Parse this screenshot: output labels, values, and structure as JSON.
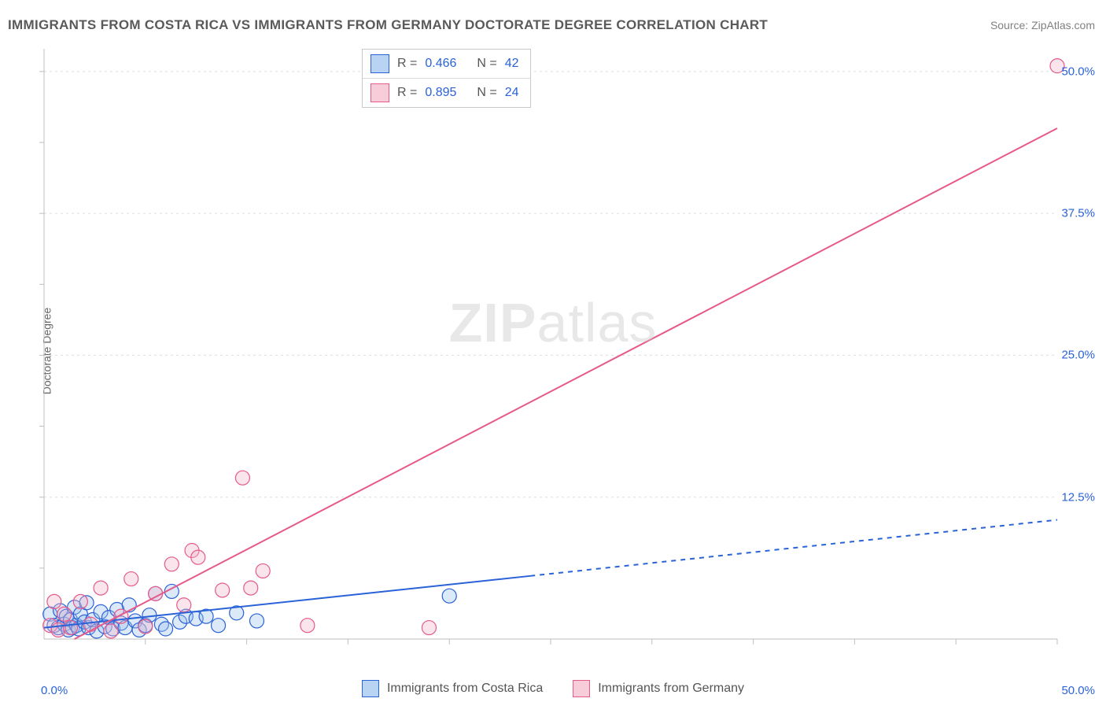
{
  "title": "IMMIGRANTS FROM COSTA RICA VS IMMIGRANTS FROM GERMANY DOCTORATE DEGREE CORRELATION CHART",
  "source_label": "Source:",
  "source_value": "ZipAtlas.com",
  "ylabel": "Doctorate Degree",
  "watermark_bold": "ZIP",
  "watermark_rest": "atlas",
  "chart": {
    "type": "scatter",
    "background_color": "#ffffff",
    "grid_color": "#dddddd",
    "axis_color": "#bfbfbf",
    "tick_color": "#bfbfbf",
    "x_range": [
      0,
      50
    ],
    "y_range": [
      0,
      52
    ],
    "y_ticks": [
      12.5,
      25.0,
      37.5,
      50.0
    ],
    "y_tick_labels": [
      "12.5%",
      "25.0%",
      "37.5%",
      "50.0%"
    ],
    "x_origin_label": "0.0%",
    "x_end_label": "50.0%",
    "x_minor_ticks": [
      5,
      10,
      15,
      20,
      25,
      30,
      35,
      40,
      45,
      50
    ],
    "y_minor_ticks": [
      6.25,
      12.5,
      18.75,
      25,
      31.25,
      37.5,
      43.75,
      50
    ],
    "marker_radius": 9,
    "marker_stroke_width": 1.2,
    "marker_fill_opacity": 0.35,
    "line_width": 2,
    "dash_pattern": "6,6"
  },
  "legend_top": {
    "rows": [
      {
        "swatch_fill": "#b9d3f2",
        "swatch_stroke": "#2a62d8",
        "r_label": "R =",
        "r_value": "0.466",
        "n_label": "N =",
        "n_value": "42"
      },
      {
        "swatch_fill": "#f6cdd9",
        "swatch_stroke": "#e65a8a",
        "r_label": "R =",
        "r_value": "0.895",
        "n_label": "N =",
        "n_value": "24"
      }
    ]
  },
  "legend_bottom": {
    "items": [
      {
        "swatch_fill": "#b9d3f2",
        "swatch_stroke": "#2a62d8",
        "label": "Immigrants from Costa Rica"
      },
      {
        "swatch_fill": "#f6cdd9",
        "swatch_stroke": "#e65a8a",
        "label": "Immigrants from Germany"
      }
    ]
  },
  "series": [
    {
      "name": "costa_rica",
      "color_stroke": "#2a62d8",
      "color_fill": "#9bc0ec",
      "trend": {
        "x1": 0,
        "y1": 1.0,
        "x2": 50,
        "y2": 10.5,
        "solid_until_x": 24
      },
      "points": [
        {
          "x": 0.3,
          "y": 2.2
        },
        {
          "x": 0.5,
          "y": 1.2
        },
        {
          "x": 0.7,
          "y": 1.0
        },
        {
          "x": 0.8,
          "y": 2.5
        },
        {
          "x": 1.0,
          "y": 1.3
        },
        {
          "x": 1.1,
          "y": 2.0
        },
        {
          "x": 1.2,
          "y": 0.8
        },
        {
          "x": 1.3,
          "y": 1.7
        },
        {
          "x": 1.4,
          "y": 1.0
        },
        {
          "x": 1.5,
          "y": 2.8
        },
        {
          "x": 1.6,
          "y": 1.2
        },
        {
          "x": 1.7,
          "y": 0.9
        },
        {
          "x": 1.8,
          "y": 2.2
        },
        {
          "x": 2.0,
          "y": 1.5
        },
        {
          "x": 2.1,
          "y": 3.2
        },
        {
          "x": 2.2,
          "y": 1.0
        },
        {
          "x": 2.4,
          "y": 1.7
        },
        {
          "x": 2.6,
          "y": 0.7
        },
        {
          "x": 2.8,
          "y": 2.4
        },
        {
          "x": 3.0,
          "y": 1.1
        },
        {
          "x": 3.2,
          "y": 1.9
        },
        {
          "x": 3.4,
          "y": 0.9
        },
        {
          "x": 3.6,
          "y": 2.6
        },
        {
          "x": 3.8,
          "y": 1.4
        },
        {
          "x": 4.0,
          "y": 1.0
        },
        {
          "x": 4.2,
          "y": 3.0
        },
        {
          "x": 4.5,
          "y": 1.6
        },
        {
          "x": 4.7,
          "y": 0.8
        },
        {
          "x": 5.0,
          "y": 1.2
        },
        {
          "x": 5.2,
          "y": 2.1
        },
        {
          "x": 5.5,
          "y": 4.0
        },
        {
          "x": 5.8,
          "y": 1.3
        },
        {
          "x": 6.0,
          "y": 0.9
        },
        {
          "x": 6.3,
          "y": 4.2
        },
        {
          "x": 6.7,
          "y": 1.5
        },
        {
          "x": 7.0,
          "y": 2.0
        },
        {
          "x": 7.5,
          "y": 1.8
        },
        {
          "x": 8.0,
          "y": 2.0
        },
        {
          "x": 8.6,
          "y": 1.2
        },
        {
          "x": 9.5,
          "y": 2.3
        },
        {
          "x": 10.5,
          "y": 1.6
        },
        {
          "x": 20.0,
          "y": 3.8
        }
      ]
    },
    {
      "name": "germany",
      "color_stroke": "#e65a8a",
      "color_fill": "#f0b5c8",
      "trend": {
        "x1": 1.5,
        "y1": 0,
        "x2": 50,
        "y2": 45,
        "solid_until_x": 50
      },
      "points": [
        {
          "x": 0.3,
          "y": 1.2
        },
        {
          "x": 0.5,
          "y": 3.3
        },
        {
          "x": 0.7,
          "y": 0.8
        },
        {
          "x": 1.0,
          "y": 2.2
        },
        {
          "x": 1.3,
          "y": 1.0
        },
        {
          "x": 1.8,
          "y": 3.3
        },
        {
          "x": 2.3,
          "y": 1.3
        },
        {
          "x": 2.8,
          "y": 4.5
        },
        {
          "x": 3.3,
          "y": 0.7
        },
        {
          "x": 3.8,
          "y": 2.0
        },
        {
          "x": 4.3,
          "y": 5.3
        },
        {
          "x": 5.0,
          "y": 1.1
        },
        {
          "x": 5.5,
          "y": 4.0
        },
        {
          "x": 6.3,
          "y": 6.6
        },
        {
          "x": 6.9,
          "y": 3.0
        },
        {
          "x": 7.3,
          "y": 7.8
        },
        {
          "x": 7.6,
          "y": 7.2
        },
        {
          "x": 8.8,
          "y": 4.3
        },
        {
          "x": 9.8,
          "y": 14.2
        },
        {
          "x": 10.2,
          "y": 4.5
        },
        {
          "x": 10.8,
          "y": 6.0
        },
        {
          "x": 13.0,
          "y": 1.2
        },
        {
          "x": 19.0,
          "y": 1.0
        },
        {
          "x": 50.0,
          "y": 50.5
        }
      ]
    }
  ]
}
